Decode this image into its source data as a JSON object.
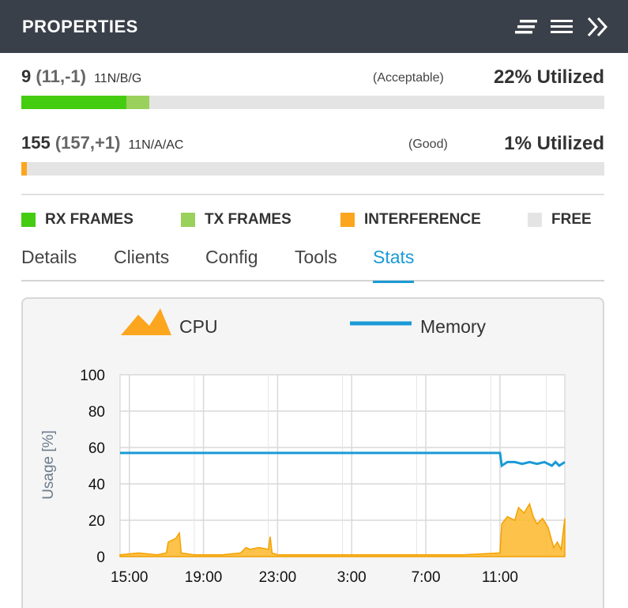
{
  "header": {
    "title": "PROPERTIES"
  },
  "radios": [
    {
      "channel": "9",
      "extension": "(11,-1)",
      "standard": "11N/B/G",
      "quality": "(Acceptable)",
      "utilization": "22% Utilized",
      "rx_frames_fraction": 0.18,
      "tx_frames_fraction": 0.04,
      "interference_fraction": 0.0
    },
    {
      "channel": "155",
      "extension": "(157,+1)",
      "standard": "11N/A/AC",
      "quality": "(Good)",
      "utilization": "1% Utilized",
      "rx_frames_fraction": 0.0,
      "tx_frames_fraction": 0.0,
      "interference_fraction": 0.01
    }
  ],
  "legend": [
    {
      "label": "RX FRAMES",
      "color": "#44cc11"
    },
    {
      "label": "TX FRAMES",
      "color": "#99d15c"
    },
    {
      "label": "INTERFERENCE",
      "color": "#fca61f"
    },
    {
      "label": "FREE",
      "color": "#e4e4e4"
    }
  ],
  "tabs": [
    {
      "label": "Details",
      "active": false
    },
    {
      "label": "Clients",
      "active": false
    },
    {
      "label": "Config",
      "active": false
    },
    {
      "label": "Tools",
      "active": false
    },
    {
      "label": "Stats",
      "active": true
    }
  ],
  "colors": {
    "header_bg": "#3a4049",
    "accent": "#1a9ad6",
    "cpu": "#fcb72a",
    "memory": "#1a9ad6"
  },
  "chart_data": {
    "type": "area",
    "ylabel": "Usage [%]",
    "xlabel": "",
    "ylim": [
      0,
      100
    ],
    "yticks": [
      "0",
      "20",
      "40",
      "60",
      "80",
      "100"
    ],
    "xtick_labels": [
      "15:00",
      "19:00",
      "23:00",
      "3:00",
      "7:00",
      "11:00"
    ],
    "xtick_hours": [
      0,
      4,
      8,
      12,
      16,
      20
    ],
    "xlim_hours": [
      -0.5,
      23.5
    ],
    "grid": true,
    "legend_position": "top",
    "series": [
      {
        "name": "CPU",
        "style": "area",
        "x_hours": [
          -0.5,
          0.5,
          1.5,
          2.0,
          2.1,
          2.5,
          2.7,
          2.8,
          3.5,
          5.0,
          6.0,
          6.3,
          6.5,
          7.0,
          7.5,
          7.6,
          7.7,
          8.0,
          10.0,
          14.0,
          18.0,
          20.0,
          20.1,
          20.4,
          20.8,
          21.0,
          21.3,
          21.6,
          21.8,
          22.0,
          22.3,
          22.6,
          22.9,
          23.1,
          23.3,
          23.5
        ],
        "values": [
          1,
          2,
          1,
          2,
          8,
          10,
          13,
          2,
          1,
          1,
          2,
          5,
          4,
          5,
          4,
          11,
          2,
          1,
          1,
          1,
          1,
          2,
          18,
          22,
          20,
          27,
          24,
          29,
          22,
          18,
          21,
          16,
          5,
          8,
          4,
          21
        ]
      },
      {
        "name": "Memory",
        "style": "line",
        "x_hours": [
          -0.5,
          4.0,
          8.0,
          12.0,
          16.0,
          20.0,
          20.1,
          20.4,
          20.8,
          21.2,
          21.6,
          22.0,
          22.4,
          22.8,
          23.0,
          23.2,
          23.5
        ],
        "values": [
          57,
          57,
          57,
          57,
          57,
          57,
          50,
          52,
          52,
          51,
          52,
          51,
          52,
          50,
          52,
          50,
          52
        ]
      }
    ]
  }
}
